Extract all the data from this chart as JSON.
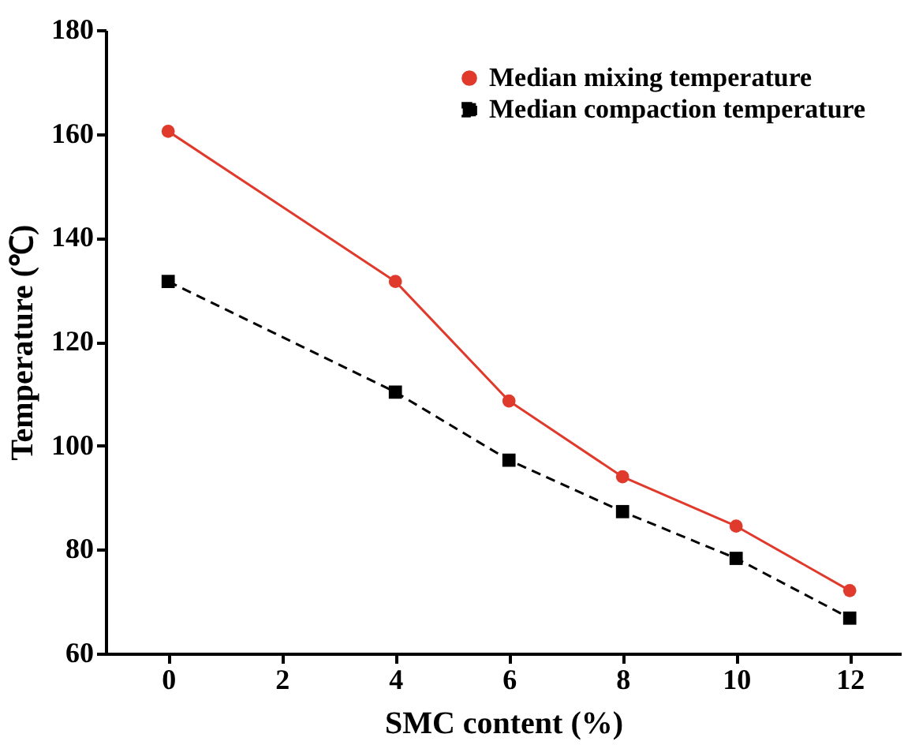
{
  "chart_data": {
    "type": "line",
    "xlabel": "SMC content (%)",
    "ylabel": "Temperature (℃)",
    "x": [
      0,
      4,
      6,
      8,
      10,
      12
    ],
    "series": [
      {
        "name": "Median mixing temperature",
        "color": "#e03a2c",
        "marker": "circle",
        "line_style": "solid",
        "values": [
          160.5,
          131.6,
          108.6,
          94.0,
          84.5,
          72.1
        ]
      },
      {
        "name": "Median compaction temperature",
        "color": "#000000",
        "marker": "square",
        "line_style": "dashed",
        "values": [
          131.6,
          110.3,
          97.2,
          87.3,
          78.3,
          66.8
        ]
      }
    ],
    "xlim": [
      -1.1,
      12.9
    ],
    "xticks": [
      0,
      2,
      4,
      6,
      8,
      10,
      12
    ],
    "ylim": [
      60,
      180
    ],
    "yticks": [
      60,
      80,
      100,
      120,
      140,
      160,
      180
    ],
    "grid": false,
    "legend": "top right"
  }
}
